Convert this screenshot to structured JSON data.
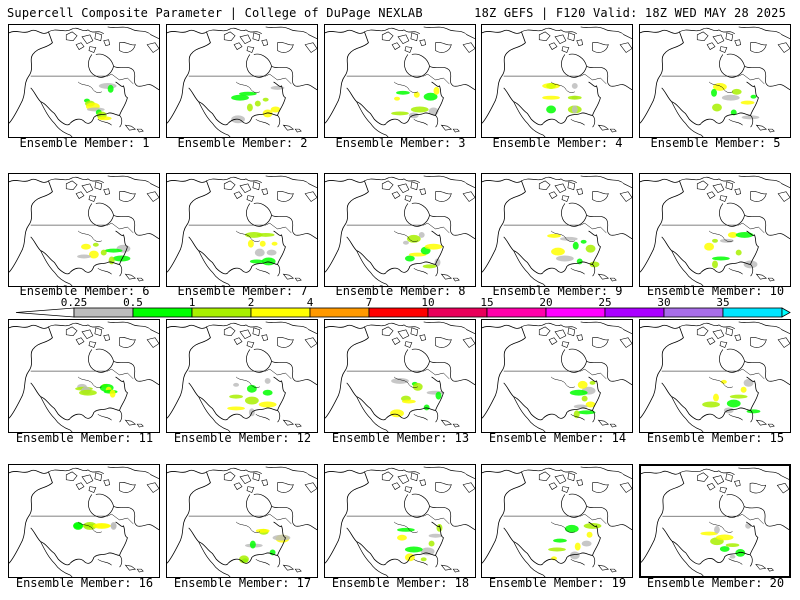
{
  "header": {
    "title": "Supercell Composite Parameter | College of DuPage NEXLAB",
    "run_info": "18Z GEFS | F120 Valid: 18Z WED MAY 28 2025"
  },
  "colorbar": {
    "ticks": [
      "0.25",
      "0.5",
      "1",
      "2",
      "4",
      "7",
      "10",
      "15",
      "20",
      "25",
      "30",
      "35"
    ],
    "colors": [
      "#bdbdbd",
      "#00ff00",
      "#a8f000",
      "#ffff00",
      "#ff9900",
      "#ff0000",
      "#e8005a",
      "#ff00aa",
      "#ff00ff",
      "#aa00ff",
      "#a86ee8",
      "#00e5ff"
    ],
    "left_arrow_color": "#ffffff",
    "right_arrow_color": "#00ffff"
  },
  "panel_label_prefix": "Ensemble Member: ",
  "members": [
    {
      "label": "Ensemble Member: 1"
    },
    {
      "label": "Ensemble Member: 2"
    },
    {
      "label": "Ensemble Member: 3"
    },
    {
      "label": "Ensemble Member: 4"
    },
    {
      "label": "Ensemble Member: 5"
    },
    {
      "label": "Ensemble Member: 6"
    },
    {
      "label": "Ensemble Member: 7"
    },
    {
      "label": "Ensemble Member: 8"
    },
    {
      "label": "Ensemble Member: 9"
    },
    {
      "label": "Ensemble Member: 10"
    },
    {
      "label": "Ensemble Member: 11"
    },
    {
      "label": "Ensemble Member: 12"
    },
    {
      "label": "Ensemble Member: 13"
    },
    {
      "label": "Ensemble Member: 14"
    },
    {
      "label": "Ensemble Member: 15"
    },
    {
      "label": "Ensemble Member: 16"
    },
    {
      "label": "Ensemble Member: 17"
    },
    {
      "label": "Ensemble Member: 18"
    },
    {
      "label": "Ensemble Member: 19"
    },
    {
      "label": "Ensemble Member: 20"
    }
  ]
}
